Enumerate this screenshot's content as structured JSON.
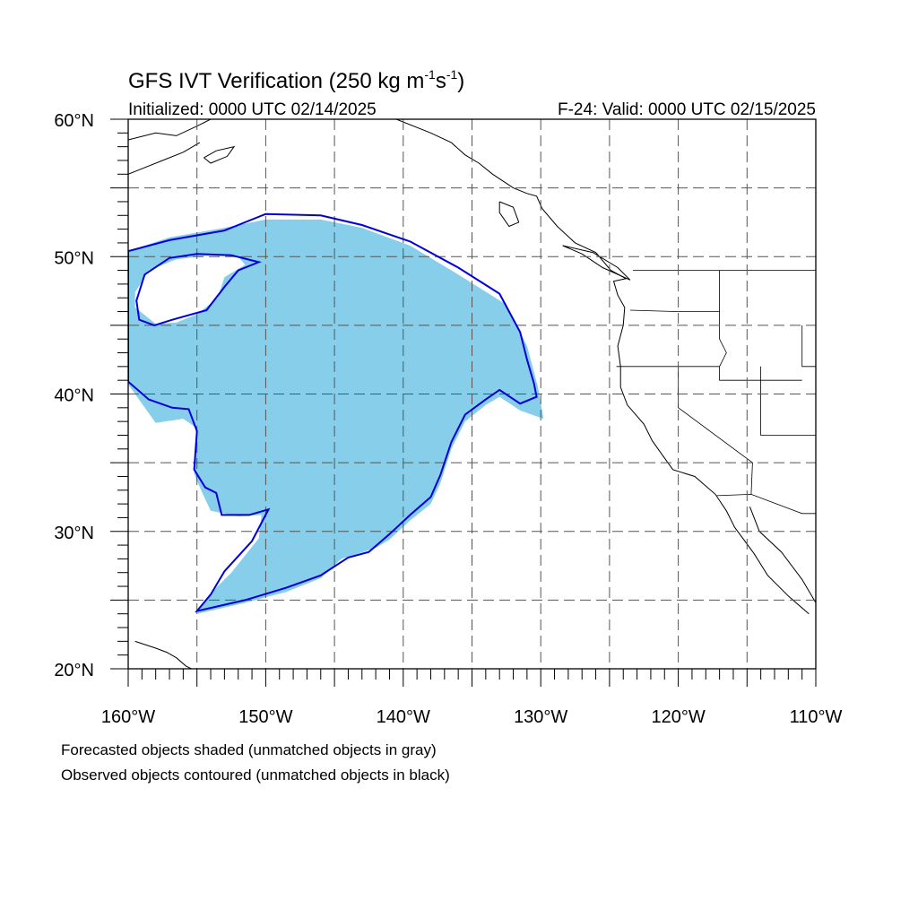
{
  "title": {
    "main": "GFS IVT Verification (250 kg m",
    "sup1": "-1",
    "mid": "s",
    "sup2": "-1",
    "end": ")"
  },
  "initialized_label": "Initialized: 0000 UTC 02/14/2025",
  "valid_label": "F-24: Valid: 0000 UTC 02/15/2025",
  "map": {
    "lon_range": [
      -160,
      -110
    ],
    "lat_range": [
      20,
      60
    ],
    "projection": "cylindrical-equidistant",
    "grid": "dashed every 5 degrees"
  },
  "lon_labels": [
    "160°W",
    "150°W",
    "140°W",
    "130°W",
    "120°W",
    "110°W"
  ],
  "lat_labels": [
    "60°N",
    "50°N",
    "40°N",
    "30°N",
    "20°N"
  ],
  "legend": {
    "line1": "Forecasted objects shaded (unmatched objects in gray)",
    "line2": "Observed objects contoured (unmatched objects in black)"
  },
  "colors": {
    "forecast_fill": "#87ceeb",
    "observed_contour": "#0000dd",
    "coastline": "#000000",
    "grid": "#555555"
  },
  "forecast_object": {
    "outer": [
      [
        -160,
        50.4
      ],
      [
        -157,
        51.4
      ],
      [
        -153,
        52.1
      ],
      [
        -150,
        52.7
      ],
      [
        -146,
        52.7
      ],
      [
        -143,
        52.1
      ],
      [
        -139.5,
        50.8
      ],
      [
        -136,
        48.7
      ],
      [
        -132.5,
        46.5
      ],
      [
        -131,
        43.5
      ],
      [
        -130.2,
        40.5
      ],
      [
        -129.8,
        38.2
      ],
      [
        -131.5,
        38.8
      ],
      [
        -133,
        39.8
      ],
      [
        -134,
        39.2
      ],
      [
        -135.5,
        38
      ],
      [
        -136.5,
        36
      ],
      [
        -137.3,
        33.5
      ],
      [
        -138,
        32
      ],
      [
        -139.5,
        30.8
      ],
      [
        -141,
        29.4
      ],
      [
        -142,
        28.8
      ],
      [
        -143.5,
        28.3
      ],
      [
        -144.5,
        28
      ],
      [
        -146,
        26.6
      ],
      [
        -148.5,
        25.6
      ],
      [
        -151.5,
        24.8
      ],
      [
        -155,
        24
      ],
      [
        -154,
        25.5
      ],
      [
        -152.5,
        27
      ],
      [
        -150.5,
        29.5
      ],
      [
        -150.3,
        31.2
      ],
      [
        -152,
        31.1
      ],
      [
        -154,
        31.5
      ],
      [
        -154.7,
        33
      ],
      [
        -155.2,
        34.2
      ],
      [
        -155,
        37.5
      ],
      [
        -156,
        38.2
      ],
      [
        -158,
        37.9
      ],
      [
        -160,
        40.7
      ]
    ],
    "hole": [
      [
        -159.5,
        47.4
      ],
      [
        -158.5,
        49
      ],
      [
        -156.5,
        49.8
      ],
      [
        -154,
        50.1
      ],
      [
        -152,
        50
      ],
      [
        -151.5,
        49.4
      ],
      [
        -153,
        48.5
      ],
      [
        -153.5,
        47
      ],
      [
        -155,
        45.8
      ],
      [
        -156.5,
        45.2
      ],
      [
        -158,
        45.1
      ],
      [
        -159.5,
        46.3
      ]
    ]
  },
  "observed_contour": {
    "outer": [
      [
        -160,
        50.4
      ],
      [
        -157,
        51.2
      ],
      [
        -153,
        51.9
      ],
      [
        -150,
        53.1
      ],
      [
        -146,
        53
      ],
      [
        -143,
        52.3
      ],
      [
        -139.5,
        51.1
      ],
      [
        -136,
        49.2
      ],
      [
        -133,
        47.3
      ],
      [
        -131.5,
        44.5
      ],
      [
        -131,
        42.5
      ],
      [
        -130.5,
        40.8
      ],
      [
        -130.3,
        39.8
      ],
      [
        -131.5,
        39.3
      ],
      [
        -133,
        40.3
      ],
      [
        -134,
        39.6
      ],
      [
        -135.5,
        38.5
      ],
      [
        -136.5,
        36.5
      ],
      [
        -137.3,
        34.1
      ],
      [
        -138,
        32.5
      ],
      [
        -139.5,
        31.2
      ],
      [
        -141,
        29.8
      ],
      [
        -142.5,
        28.5
      ],
      [
        -144,
        28.1
      ],
      [
        -146,
        26.8
      ],
      [
        -148.5,
        25.9
      ],
      [
        -151.5,
        25
      ],
      [
        -155,
        24.2
      ],
      [
        -154,
        25.4
      ],
      [
        -153,
        27.1
      ],
      [
        -151,
        29.3
      ],
      [
        -149.8,
        31.6
      ],
      [
        -151.2,
        31.2
      ],
      [
        -153.2,
        31.2
      ],
      [
        -153.6,
        32.8
      ],
      [
        -154.4,
        33.2
      ],
      [
        -155.2,
        34.5
      ],
      [
        -155,
        37.3
      ],
      [
        -155.6,
        38.9
      ],
      [
        -156.8,
        39
      ],
      [
        -158.5,
        39.6
      ],
      [
        -160,
        40.9
      ]
    ],
    "hole": [
      [
        -159.4,
        46.8
      ],
      [
        -158.8,
        48.7
      ],
      [
        -157,
        49.9
      ],
      [
        -155,
        50.2
      ],
      [
        -152.5,
        50.1
      ],
      [
        -150.5,
        49.6
      ],
      [
        -152,
        49
      ],
      [
        -153,
        47.8
      ],
      [
        -154.3,
        46.1
      ],
      [
        -156.8,
        45.4
      ],
      [
        -158.1,
        45
      ],
      [
        -159.2,
        45.4
      ]
    ]
  },
  "coastlines": [
    {
      "name": "alaska-coast",
      "points": [
        [
          -160,
          58.5
        ],
        [
          -158,
          59
        ],
        [
          -156.5,
          58.8
        ],
        [
          -155,
          59.5
        ],
        [
          -154,
          60
        ]
      ]
    },
    {
      "name": "alaska-peninsula",
      "points": [
        [
          -160,
          56
        ],
        [
          -159,
          56.4
        ],
        [
          -157.5,
          57
        ],
        [
          -156,
          57.6
        ],
        [
          -154.8,
          58.3
        ]
      ]
    },
    {
      "name": "kodiak-island",
      "points": [
        [
          -154.5,
          57.2
        ],
        [
          -153.6,
          57.7
        ],
        [
          -152.3,
          58
        ],
        [
          -152.8,
          57.3
        ],
        [
          -154,
          56.8
        ],
        [
          -154.5,
          57.2
        ]
      ]
    },
    {
      "name": "alaska-panhandle",
      "points": [
        [
          -140.5,
          60
        ],
        [
          -138,
          59
        ],
        [
          -136.5,
          58.3
        ],
        [
          -135.5,
          57.4
        ],
        [
          -134.5,
          56.8
        ],
        [
          -133.5,
          56
        ],
        [
          -132,
          55
        ],
        [
          -131,
          54.6
        ],
        [
          -130.3,
          54.4
        ],
        [
          -129.9,
          53.5
        ],
        [
          -128.8,
          52.2
        ],
        [
          -127.5,
          51
        ],
        [
          -126,
          50.3
        ],
        [
          -124.9,
          49
        ],
        [
          -123.8,
          48.4
        ],
        [
          -124.7,
          48.2
        ],
        [
          -124.4,
          47.2
        ],
        [
          -123.9,
          46.3
        ],
        [
          -124,
          45
        ],
        [
          -124.4,
          43.5
        ],
        [
          -124.2,
          42
        ],
        [
          -124.2,
          40.5
        ],
        [
          -123.7,
          39.2
        ],
        [
          -122.5,
          37.8
        ],
        [
          -121.9,
          36.6
        ],
        [
          -120.9,
          35.2
        ],
        [
          -120.4,
          34.5
        ],
        [
          -118.8,
          34
        ],
        [
          -117.3,
          32.7
        ],
        [
          -116.5,
          31.5
        ],
        [
          -115.9,
          30.3
        ],
        [
          -114.5,
          28.4
        ],
        [
          -113.5,
          26.8
        ],
        [
          -112,
          25.3
        ],
        [
          -110.5,
          24
        ]
      ]
    },
    {
      "name": "haida-gwaii",
      "points": [
        [
          -133,
          54
        ],
        [
          -132,
          53.6
        ],
        [
          -131.6,
          52.5
        ],
        [
          -132.3,
          52.2
        ],
        [
          -133,
          53.2
        ],
        [
          -133,
          54
        ]
      ]
    },
    {
      "name": "vancouver-island",
      "points": [
        [
          -128.4,
          50.8
        ],
        [
          -127,
          50.2
        ],
        [
          -125.5,
          49.2
        ],
        [
          -123.5,
          48.3
        ],
        [
          -124.4,
          49.2
        ],
        [
          -126.2,
          50.3
        ],
        [
          -128.4,
          50.8
        ]
      ]
    },
    {
      "name": "gulf-of-california",
      "points": [
        [
          -114.8,
          31.8
        ],
        [
          -114.1,
          30
        ],
        [
          -112.5,
          28.5
        ],
        [
          -111,
          26.5
        ],
        [
          -110,
          24.8
        ]
      ]
    },
    {
      "name": "hawaii-islands",
      "points": [
        [
          -155,
          19.8
        ],
        [
          -155.8,
          20.2
        ],
        [
          -156.5,
          20.8
        ],
        [
          -157.2,
          21.2
        ],
        [
          -158,
          21.5
        ],
        [
          -159.5,
          22
        ]
      ]
    }
  ],
  "state_borders": [
    [
      [
        -123.3,
        49
      ],
      [
        -110,
        49
      ]
    ],
    [
      [
        -124.5,
        42
      ],
      [
        -117,
        42
      ],
      [
        -117,
        41
      ],
      [
        -111,
        41
      ]
    ],
    [
      [
        -120,
        42
      ],
      [
        -120,
        39
      ],
      [
        -114.6,
        35
      ],
      [
        -114.7,
        32.7
      ]
    ],
    [
      [
        -117,
        49
      ],
      [
        -117,
        44
      ],
      [
        -116.5,
        43
      ],
      [
        -117,
        42
      ]
    ],
    [
      [
        -123.5,
        46.1
      ],
      [
        -120,
        46
      ],
      [
        -117,
        46
      ]
    ],
    [
      [
        -114,
        42
      ],
      [
        -114,
        37
      ],
      [
        -110,
        37
      ]
    ],
    [
      [
        -117.2,
        32.6
      ],
      [
        -114.7,
        32.7
      ],
      [
        -111,
        31.3
      ],
      [
        -110,
        31.3
      ]
    ],
    [
      [
        -111,
        45
      ],
      [
        -111,
        42
      ],
      [
        -110,
        42
      ]
    ]
  ]
}
